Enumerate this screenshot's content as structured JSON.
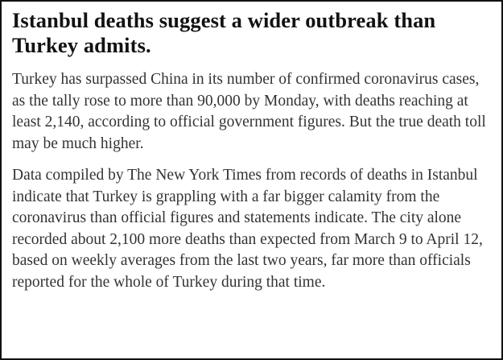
{
  "article": {
    "headline": "Istanbul deaths suggest a wider outbreak than Turkey admits.",
    "paragraphs": [
      "Turkey has surpassed China in its number of confirmed coronavirus cases, as the tally rose to more than 90,000 by Monday, with deaths reaching at least 2,140, according to official government figures. But the true death toll may be much higher.",
      "Data compiled by The New York Times from records of deaths in Istanbul indicate that Turkey is grappling with a far bigger calamity from the coronavirus than official figures and statements indicate. The city alone recorded about 2,100 more deaths than expected from March 9 to April 12, based on weekly averages from the last two years, far more than officials reported for the whole of Turkey during that time."
    ]
  }
}
